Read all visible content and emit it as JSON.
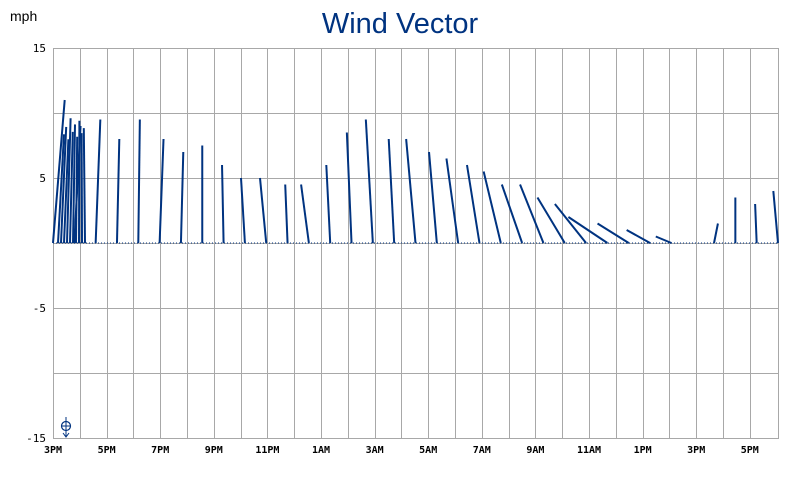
{
  "chart_data": {
    "type": "line",
    "subtype": "wind-vector",
    "title": "Wind Vector",
    "ylabel": "mph",
    "ylim": [
      -15,
      15
    ],
    "yticks": [
      15,
      5,
      -5,
      -15
    ],
    "xticks": [
      "3PM",
      "5PM",
      "7PM",
      "9PM",
      "11PM",
      "1AM",
      "3AM",
      "5AM",
      "7AM",
      "9AM",
      "11AM",
      "1PM",
      "3PM",
      "5PM"
    ],
    "grid": true,
    "color": "#003380",
    "series": [
      {
        "vectors": [
          [
            0.0,
            -1.5,
            11.0
          ],
          [
            0.2,
            -0.8,
            9.0
          ],
          [
            0.4,
            -0.6,
            9.5
          ],
          [
            0.6,
            -0.3,
            8.0
          ],
          [
            0.8,
            -0.2,
            9.5
          ],
          [
            1.0,
            -0.5,
            8.0
          ],
          [
            1.2,
            -0.3,
            7.0
          ],
          [
            1.4,
            0.0,
            7.5
          ],
          [
            1.6,
            0.2,
            6.0
          ],
          [
            1.8,
            0.5,
            5.0
          ],
          [
            2.0,
            0.8,
            5.0
          ],
          [
            2.2,
            0.3,
            4.5
          ],
          [
            2.4,
            1.0,
            4.5
          ],
          [
            2.6,
            0.5,
            6.0
          ],
          [
            2.8,
            0.6,
            8.5
          ],
          [
            3.0,
            0.9,
            9.5
          ],
          [
            3.2,
            0.7,
            8.0
          ],
          [
            3.4,
            1.2,
            8.0
          ],
          [
            3.6,
            1.0,
            7.0
          ],
          [
            3.8,
            1.5,
            6.5
          ],
          [
            4.0,
            1.6,
            6.0
          ],
          [
            4.2,
            2.2,
            5.5
          ],
          [
            4.4,
            2.6,
            4.5
          ],
          [
            4.6,
            3.0,
            4.5
          ],
          [
            4.8,
            3.5,
            3.5
          ],
          [
            5.0,
            4.0,
            3.0
          ],
          [
            5.2,
            5.0,
            2.0
          ],
          [
            5.4,
            4.0,
            1.5
          ],
          [
            5.6,
            3.0,
            1.0
          ],
          [
            5.8,
            2.0,
            0.5
          ],
          [
            6.0,
            0.0,
            0.0
          ],
          [
            6.2,
            -0.5,
            1.5
          ],
          [
            6.4,
            0.0,
            3.5
          ],
          [
            6.6,
            0.2,
            3.0
          ],
          [
            6.8,
            0.6,
            4.0
          ]
        ]
      }
    ],
    "overlay_samples": [
      [
        -1.5,
        8.8,
        3.5
      ],
      [
        -1.3,
        9.4,
        4.2
      ],
      [
        -1.1,
        8.4,
        3.8
      ],
      [
        -0.9,
        10.1,
        4.0
      ],
      [
        -0.7,
        9.0,
        3.6
      ],
      [
        -0.5,
        9.6,
        4.1
      ],
      [
        -0.3,
        8.6,
        3.9
      ],
      [
        -0.1,
        9.9,
        4.3
      ],
      [
        0.1,
        8.9,
        3.7
      ],
      [
        0.3,
        9.3,
        4.0
      ]
    ]
  }
}
